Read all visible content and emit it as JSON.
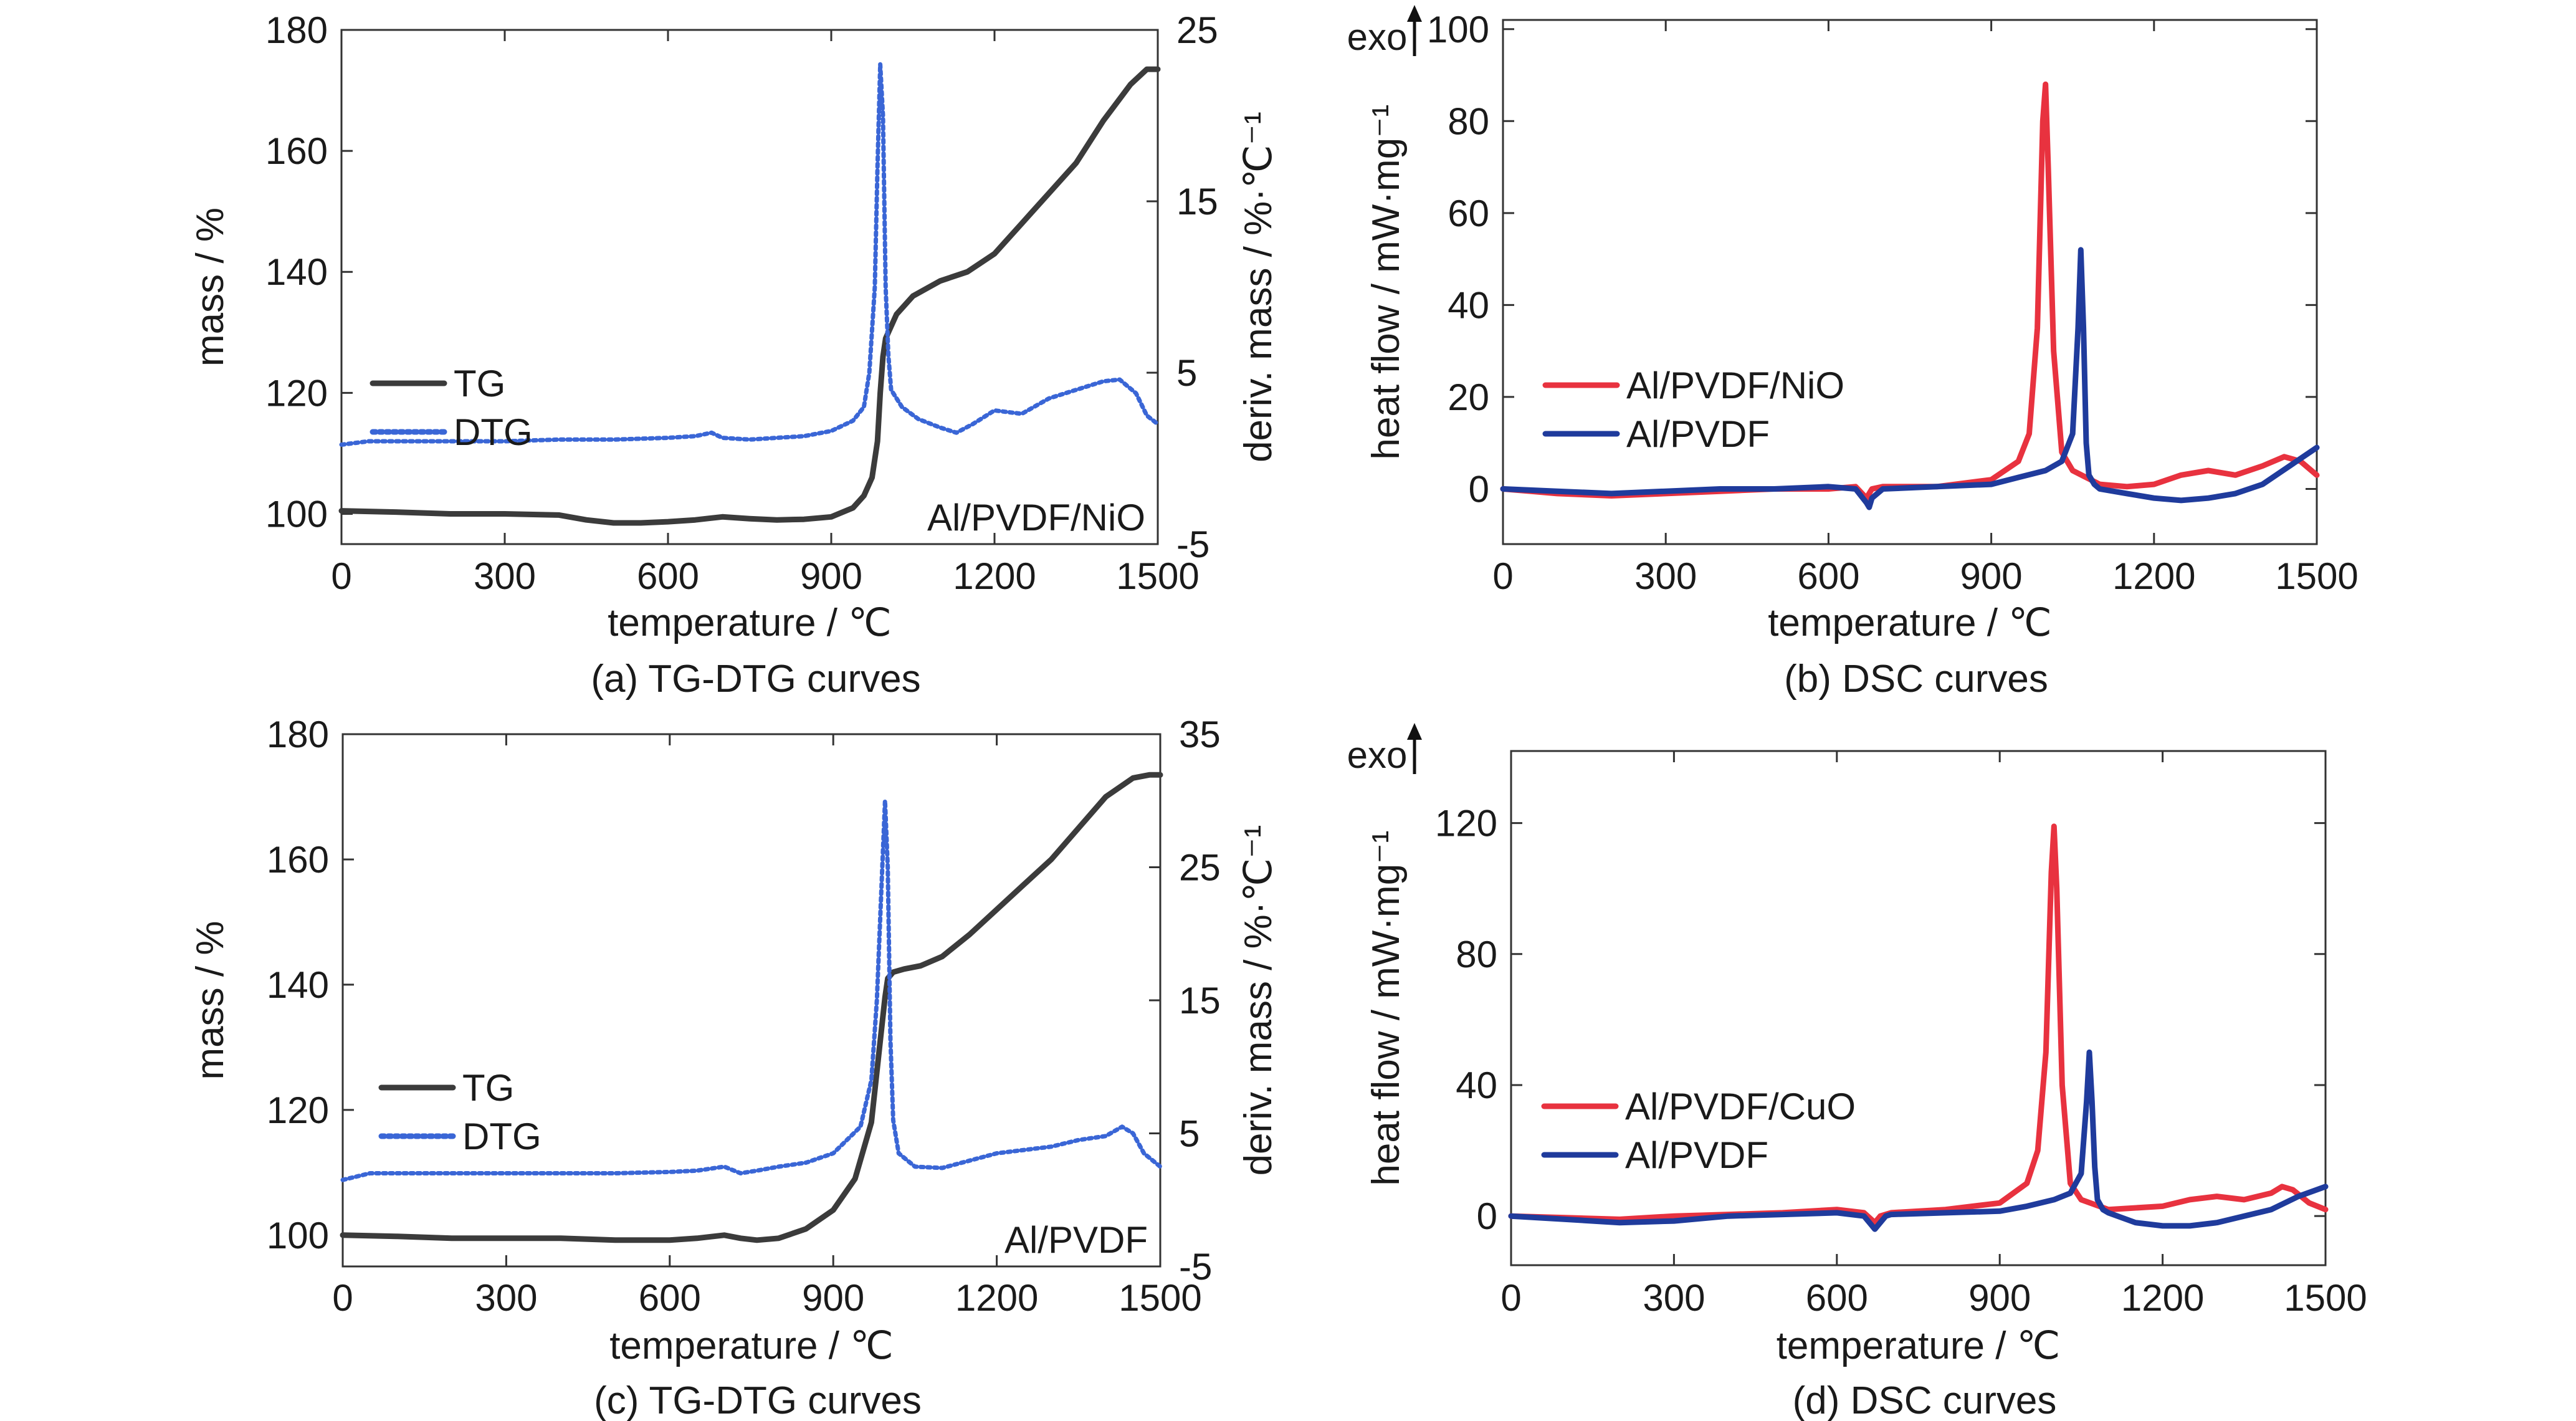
{
  "colors": {
    "tg": "#3b3b3b",
    "dtg": "#3a66d6",
    "red": "#e8323f",
    "blue": "#1f3b9c"
  },
  "chart_data": [
    {
      "id": "a",
      "type": "line",
      "caption": "(a) TG-DTG curves",
      "xlabel": "temperature / ℃",
      "ylabel": "mass / %",
      "y2label": "deriv. mass / %·℃⁻¹",
      "xlim": [
        0,
        1500
      ],
      "ylim": [
        95,
        180
      ],
      "y2lim": [
        -5,
        25
      ],
      "xticks": [
        "0",
        "300",
        "600",
        "900",
        "1200",
        "1500"
      ],
      "yticks": [
        "100",
        "120",
        "140",
        "160",
        "180"
      ],
      "y2ticks": [
        "-5",
        "5",
        "15",
        "25"
      ],
      "annotation": "Al/PVDF/NiO",
      "legend_position": "center-left",
      "series": [
        {
          "name": "TG",
          "axis": "left",
          "style": "solid",
          "x": [
            0,
            100,
            200,
            300,
            400,
            450,
            500,
            550,
            600,
            650,
            700,
            750,
            800,
            850,
            900,
            940,
            960,
            975,
            985,
            990,
            995,
            1000,
            1020,
            1050,
            1100,
            1150,
            1200,
            1250,
            1300,
            1350,
            1400,
            1450,
            1480,
            1500
          ],
          "y": [
            100.5,
            100.3,
            100,
            100,
            99.8,
            99,
            98.5,
            98.5,
            98.7,
            99,
            99.5,
            99.2,
            99,
            99.1,
            99.5,
            101,
            103,
            106,
            112,
            120,
            126,
            129,
            133,
            136,
            138.5,
            140,
            143,
            148,
            153,
            158,
            165,
            171,
            173.5,
            173.5
          ]
        },
        {
          "name": "DTG",
          "axis": "right",
          "style": "dotted",
          "x": [
            0,
            50,
            200,
            300,
            400,
            500,
            600,
            650,
            680,
            700,
            750,
            800,
            850,
            900,
            940,
            960,
            970,
            980,
            985,
            990,
            995,
            1000,
            1005,
            1010,
            1030,
            1060,
            1100,
            1130,
            1160,
            1200,
            1250,
            1300,
            1350,
            1400,
            1430,
            1460,
            1480,
            1500
          ],
          "y": [
            0.8,
            1.0,
            1.0,
            1.0,
            1.1,
            1.1,
            1.2,
            1.3,
            1.5,
            1.2,
            1.1,
            1.2,
            1.3,
            1.6,
            2.2,
            3.0,
            5.0,
            10.0,
            17.0,
            23.0,
            20.0,
            10.0,
            6.0,
            4.0,
            3.0,
            2.3,
            1.8,
            1.5,
            2.0,
            2.8,
            2.6,
            3.5,
            4.0,
            4.5,
            4.6,
            3.8,
            2.5,
            2.0
          ]
        }
      ]
    },
    {
      "id": "b",
      "type": "line",
      "caption": "(b) DSC curves",
      "xlabel": "temperature / ℃",
      "ylabel": "heat flow / mW·mg⁻¹",
      "top_marker": "exo",
      "xlim": [
        0,
        1500
      ],
      "ylim": [
        -12,
        102
      ],
      "xticks": [
        "0",
        "300",
        "600",
        "900",
        "1200",
        "1500"
      ],
      "yticks": [
        "0",
        "20",
        "40",
        "60",
        "80",
        "100"
      ],
      "legend_position": "center-left",
      "series": [
        {
          "name": "Al/PVDF/NiO",
          "color": "red",
          "x": [
            0,
            50,
            100,
            200,
            300,
            400,
            500,
            600,
            650,
            670,
            680,
            700,
            800,
            900,
            950,
            970,
            985,
            995,
            1000,
            1005,
            1015,
            1030,
            1050,
            1100,
            1150,
            1200,
            1250,
            1300,
            1350,
            1400,
            1440,
            1470,
            1500
          ],
          "y": [
            0,
            -0.5,
            -1,
            -1.5,
            -1,
            -0.5,
            0,
            0,
            0.5,
            -2,
            0,
            0.5,
            0.5,
            2,
            6,
            12,
            35,
            80,
            88,
            70,
            30,
            8,
            4,
            1,
            0.5,
            1,
            3,
            4,
            3,
            5,
            7,
            6,
            3
          ]
        },
        {
          "name": "Al/PVDF",
          "color": "blue",
          "x": [
            0,
            100,
            200,
            300,
            400,
            500,
            600,
            650,
            670,
            675,
            680,
            700,
            800,
            900,
            950,
            1000,
            1030,
            1050,
            1060,
            1065,
            1070,
            1075,
            1080,
            1090,
            1100,
            1150,
            1200,
            1250,
            1300,
            1350,
            1400,
            1450,
            1500
          ],
          "y": [
            0,
            -0.5,
            -1,
            -0.5,
            0,
            0,
            0.5,
            0,
            -3,
            -4,
            -2,
            0,
            0.5,
            1,
            2.5,
            4,
            6,
            12,
            35,
            52,
            35,
            10,
            3,
            1,
            0,
            -1,
            -2,
            -2.5,
            -2,
            -1,
            1,
            5,
            9
          ]
        }
      ]
    },
    {
      "id": "c",
      "type": "line",
      "caption": "(c) TG-DTG curves",
      "xlabel": "temperature / ℃",
      "ylabel": "mass / %",
      "y2label": "deriv. mass / %·℃⁻¹",
      "xlim": [
        0,
        1500
      ],
      "ylim": [
        95,
        180
      ],
      "y2lim": [
        -5,
        35
      ],
      "xticks": [
        "0",
        "300",
        "600",
        "900",
        "1200",
        "1500"
      ],
      "yticks": [
        "100",
        "120",
        "140",
        "160",
        "180"
      ],
      "y2ticks": [
        "-5",
        "5",
        "15",
        "25",
        "35"
      ],
      "annotation": "Al/PVDF",
      "legend_position": "bottom-left",
      "series": [
        {
          "name": "TG",
          "axis": "left",
          "style": "solid",
          "x": [
            0,
            100,
            200,
            300,
            400,
            500,
            600,
            650,
            700,
            730,
            760,
            800,
            850,
            900,
            940,
            970,
            985,
            995,
            1000,
            1010,
            1030,
            1060,
            1100,
            1150,
            1200,
            1250,
            1300,
            1350,
            1400,
            1450,
            1480,
            1500
          ],
          "y": [
            100,
            99.8,
            99.5,
            99.5,
            99.5,
            99.2,
            99.2,
            99.5,
            100,
            99.5,
            99.2,
            99.5,
            101,
            104,
            109,
            118,
            130,
            138,
            141,
            142,
            142.5,
            143,
            144.5,
            148,
            152,
            156,
            160,
            165,
            170,
            173,
            173.5,
            173.5
          ]
        },
        {
          "name": "DTG",
          "axis": "right",
          "style": "dotted",
          "x": [
            0,
            50,
            200,
            300,
            400,
            500,
            600,
            650,
            700,
            730,
            760,
            800,
            850,
            900,
            950,
            970,
            980,
            990,
            995,
            1000,
            1005,
            1010,
            1020,
            1050,
            1100,
            1200,
            1300,
            1350,
            1400,
            1430,
            1450,
            1470,
            1500
          ],
          "y": [
            1.5,
            2.0,
            2.0,
            2.0,
            2.0,
            2.0,
            2.1,
            2.2,
            2.5,
            2.0,
            2.2,
            2.5,
            2.8,
            3.5,
            5.5,
            9.0,
            15.0,
            25.0,
            30.0,
            25.0,
            12.0,
            6.0,
            3.5,
            2.5,
            2.4,
            3.5,
            4.0,
            4.5,
            4.8,
            5.5,
            5.0,
            3.5,
            2.5
          ]
        }
      ]
    },
    {
      "id": "d",
      "type": "line",
      "caption": "(d) DSC curves",
      "xlabel": "temperature / ℃",
      "ylabel": "heat flow / mW·mg⁻¹",
      "top_marker": "exo",
      "xlim": [
        0,
        1500
      ],
      "ylim": [
        -15,
        142
      ],
      "xticks": [
        "0",
        "300",
        "600",
        "900",
        "1200",
        "1500"
      ],
      "yticks": [
        "0",
        "40",
        "80",
        "120"
      ],
      "legend_position": "bottom-left",
      "series": [
        {
          "name": "Al/PVDF/CuO",
          "color": "red",
          "x": [
            0,
            100,
            200,
            300,
            400,
            500,
            600,
            650,
            670,
            680,
            700,
            800,
            900,
            950,
            970,
            985,
            995,
            1000,
            1005,
            1015,
            1030,
            1050,
            1100,
            1200,
            1250,
            1300,
            1350,
            1400,
            1420,
            1440,
            1470,
            1500
          ],
          "y": [
            0,
            -0.5,
            -1,
            0,
            0.5,
            1,
            2,
            1,
            -2,
            0,
            1,
            2,
            4,
            10,
            20,
            50,
            105,
            119,
            100,
            40,
            10,
            5,
            2,
            3,
            5,
            6,
            5,
            7,
            9,
            8,
            4,
            2
          ]
        },
        {
          "name": "Al/PVDF",
          "color": "blue",
          "x": [
            0,
            100,
            200,
            300,
            400,
            500,
            600,
            650,
            665,
            670,
            675,
            690,
            700,
            800,
            900,
            950,
            1000,
            1030,
            1050,
            1060,
            1065,
            1070,
            1075,
            1080,
            1090,
            1100,
            1150,
            1200,
            1250,
            1300,
            1350,
            1400,
            1450,
            1500
          ],
          "y": [
            0,
            -1,
            -2,
            -1.5,
            0,
            0.5,
            1,
            0,
            -3,
            -4,
            -3,
            0,
            0.5,
            1,
            1.5,
            3,
            5,
            7,
            13,
            35,
            50,
            35,
            15,
            5,
            2,
            1,
            -2,
            -3,
            -3,
            -2,
            0,
            2,
            6,
            9
          ]
        }
      ]
    }
  ]
}
